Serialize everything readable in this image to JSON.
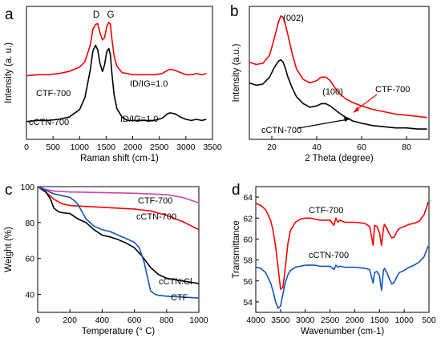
{
  "panels": [
    {
      "panel_label": "a",
      "chart_data": {
        "type": "line",
        "xlabel": "Raman shift (cm-1)",
        "ylabel": "Intensity (a. u.)",
        "xlim": [
          0,
          3500
        ],
        "xticks": [
          "0",
          "500",
          "1000",
          "1500",
          "2000",
          "2500",
          "3000",
          "3500"
        ],
        "yticks_shown": false,
        "peak_labels": [
          "D",
          "G"
        ],
        "annotations": [
          "CTF-700",
          "cCTN-700",
          "ID/IG=1.0",
          "ID/IG=1.0"
        ],
        "series": [
          {
            "name": "CTF-700",
            "color": "#ff0000",
            "x": [
              0,
              200,
              400,
              600,
              800,
              1000,
              1100,
              1200,
              1250,
              1300,
              1340,
              1380,
              1430,
              1470,
              1510,
              1550,
              1580,
              1610,
              1650,
              1700,
              1800,
              1900,
              2000,
              2200,
              2400,
              2550,
              2650,
              2700,
              2800,
              2900,
              3000,
              3100,
              3200,
              3300,
              3380
            ],
            "y": [
              0.51,
              0.52,
              0.52,
              0.53,
              0.55,
              0.59,
              0.64,
              0.79,
              0.94,
              0.98,
              0.99,
              0.91,
              0.84,
              0.86,
              0.96,
              1.0,
              0.98,
              0.84,
              0.69,
              0.6,
              0.54,
              0.53,
              0.52,
              0.52,
              0.52,
              0.53,
              0.56,
              0.57,
              0.56,
              0.54,
              0.52,
              0.52,
              0.53,
              0.52,
              0.53
            ]
          },
          {
            "name": "cCTN-700",
            "color": "#000000",
            "x": [
              0,
              200,
              400,
              600,
              800,
              1000,
              1100,
              1200,
              1250,
              1300,
              1340,
              1380,
              1430,
              1470,
              1510,
              1550,
              1580,
              1610,
              1650,
              1700,
              1800,
              1900,
              2000,
              2200,
              2400,
              2550,
              2650,
              2700,
              2800,
              2900,
              3000,
              3100,
              3200,
              3300,
              3380
            ],
            "y": [
              0.09,
              0.1,
              0.1,
              0.11,
              0.13,
              0.2,
              0.31,
              0.56,
              0.74,
              0.79,
              0.75,
              0.63,
              0.55,
              0.61,
              0.73,
              0.76,
              0.7,
              0.52,
              0.33,
              0.21,
              0.13,
              0.1,
              0.1,
              0.1,
              0.1,
              0.12,
              0.16,
              0.17,
              0.16,
              0.13,
              0.11,
              0.1,
              0.11,
              0.1,
              0.11
            ]
          }
        ]
      }
    },
    {
      "panel_label": "b",
      "chart_data": {
        "type": "line",
        "xlabel": "2 Theta (degree)",
        "ylabel": "Intensity (a.u.)",
        "xlim": [
          10,
          90
        ],
        "xticks": [
          "20",
          "40",
          "60",
          "80"
        ],
        "yticks_shown": false,
        "peak_labels": [
          "(002)",
          "(100)"
        ],
        "annotations": [
          "CTF-700",
          "cCTN-700"
        ],
        "series": [
          {
            "name": "CTF-700",
            "color": "#ff0000",
            "x": [
              10,
              13,
              16,
              19,
              21,
              23,
              24,
              25,
              26,
              27,
              29,
              31,
              34,
              37,
              40,
              42,
              44,
              46,
              48,
              50,
              53,
              56,
              60,
              65,
              70,
              75,
              80,
              85,
              89
            ],
            "y": [
              0.6,
              0.58,
              0.59,
              0.66,
              0.8,
              0.95,
              1.0,
              0.99,
              0.93,
              0.85,
              0.68,
              0.54,
              0.45,
              0.42,
              0.44,
              0.47,
              0.47,
              0.44,
              0.38,
              0.33,
              0.28,
              0.25,
              0.22,
              0.19,
              0.17,
              0.15,
              0.14,
              0.13,
              0.12
            ]
          },
          {
            "name": "cCTN-700",
            "color": "#000000",
            "x": [
              10,
              13,
              16,
              19,
              21,
              23,
              24,
              25,
              26,
              27,
              29,
              31,
              34,
              37,
              40,
              42,
              44,
              46,
              48,
              50,
              53,
              56,
              60,
              65,
              70,
              75,
              80,
              85,
              89
            ],
            "y": [
              0.42,
              0.4,
              0.41,
              0.47,
              0.55,
              0.61,
              0.62,
              0.6,
              0.55,
              0.48,
              0.38,
              0.3,
              0.24,
              0.21,
              0.22,
              0.24,
              0.24,
              0.22,
              0.19,
              0.16,
              0.12,
              0.09,
              0.07,
              0.05,
              0.04,
              0.03,
              0.03,
              0.02,
              0.02
            ]
          }
        ]
      }
    },
    {
      "panel_label": "c",
      "chart_data": {
        "type": "line",
        "xlabel": "Temperature (° C)",
        "ylabel": "Weight (%)",
        "xlim": [
          0,
          1000
        ],
        "ylim": [
          30,
          100
        ],
        "xticks": [
          "0",
          "200",
          "400",
          "600",
          "800",
          "1000"
        ],
        "yticks": [
          "40",
          "60",
          "80",
          "100"
        ],
        "series": [
          {
            "name": "CTF-700",
            "color": "#cc44aa",
            "x": [
              0,
              50,
              100,
              200,
              400,
              600,
              800,
              900,
              1000
            ],
            "y": [
              100,
              98.5,
              97.5,
              97,
              96.7,
              96.3,
              95.5,
              94,
              91
            ]
          },
          {
            "name": "cCTN-700",
            "color": "#ff0000",
            "x": [
              0,
              50,
              100,
              150,
              200,
              300,
              400,
              500,
              600,
              700,
              800,
              900,
              1000
            ],
            "y": [
              100,
              97,
              93,
              90.5,
              89.5,
              89,
              88.5,
              88,
              87.5,
              86.5,
              84,
              80.5,
              76
            ]
          },
          {
            "name": "cCTN:Cl",
            "color": "#000000",
            "x": [
              0,
              50,
              80,
              100,
              130,
              150,
              200,
              250,
              300,
              350,
              400,
              450,
              500,
              550,
              600,
              650,
              700,
              750,
              800,
              900,
              1000
            ],
            "y": [
              100,
              97,
              93,
              88,
              86,
              85.5,
              85,
              82,
              80,
              76,
              73,
              72,
              70.5,
              68.5,
              66,
              61,
              55,
              51,
              49,
              47.5,
              46
            ]
          },
          {
            "name": "CTF",
            "color": "#1155bb",
            "x": [
              0,
              50,
              100,
              150,
              200,
              230,
              250,
              300,
              350,
              400,
              450,
              500,
              550,
              600,
              630,
              660,
              680,
              700,
              730,
              750,
              800,
              900,
              1000
            ],
            "y": [
              100,
              98,
              96,
              95,
              94,
              92,
              90,
              82,
              78,
              76,
              75,
              73,
              71,
              69,
              66,
              58,
              50,
              42,
              40,
              39.5,
              39,
              38.5,
              38
            ]
          }
        ]
      }
    },
    {
      "panel_label": "d",
      "chart_data": {
        "type": "line",
        "xlabel": "Wavenumber (cm-1)",
        "ylabel": "Transmittance",
        "xlim": [
          4000,
          500
        ],
        "ylim": [
          53,
          65
        ],
        "xticks": [
          "4000",
          "3500",
          "3000",
          "2500",
          "2000",
          "1500",
          "1000",
          "500"
        ],
        "yticks": [
          "54",
          "56",
          "58",
          "60",
          "62",
          "64"
        ],
        "series": [
          {
            "name": "CTF-700",
            "color": "#ff0000",
            "x": [
              4000,
              3900,
              3800,
              3700,
              3650,
              3600,
              3550,
              3500,
              3450,
              3400,
              3350,
              3300,
              3200,
              3100,
              3000,
              2900,
              2800,
              2700,
              2600,
              2500,
              2420,
              2380,
              2340,
              2300,
              2200,
              2000,
              1800,
              1700,
              1650,
              1630,
              1600,
              1550,
              1500,
              1460,
              1440,
              1420,
              1400,
              1350,
              1300,
              1250,
              1200,
              1150,
              1100,
              1000,
              900,
              800,
              700,
              600,
              550,
              520
            ],
            "y": [
              63.4,
              63.2,
              62.8,
              61.8,
              60.8,
              59.3,
              57.3,
              55.2,
              55.4,
              57.4,
              59.6,
              60.8,
              61.6,
              61.9,
              62.0,
              62.0,
              61.9,
              61.8,
              61.8,
              61.8,
              61.3,
              62.0,
              61.6,
              61.8,
              61.6,
              61.6,
              61.5,
              61.2,
              60.0,
              59.4,
              61.3,
              61.2,
              60.6,
              59.4,
              60.2,
              61.0,
              61.4,
              61.0,
              60.5,
              60.1,
              60.2,
              60.7,
              61.0,
              61.2,
              61.4,
              61.5,
              61.7,
              62.3,
              63.0,
              63.5
            ]
          },
          {
            "name": "cCTN-700",
            "color": "#1155bb",
            "x": [
              4000,
              3900,
              3800,
              3700,
              3650,
              3600,
              3550,
              3500,
              3450,
              3400,
              3350,
              3300,
              3200,
              3100,
              3000,
              2900,
              2800,
              2700,
              2600,
              2500,
              2420,
              2380,
              2340,
              2300,
              2200,
              2000,
              1800,
              1700,
              1650,
              1630,
              1600,
              1550,
              1500,
              1460,
              1440,
              1420,
              1400,
              1350,
              1300,
              1250,
              1200,
              1150,
              1100,
              1000,
              900,
              800,
              700,
              600,
              550,
              520
            ],
            "y": [
              57.3,
              57.2,
              56.8,
              55.8,
              55.0,
              54.0,
              53.4,
              53.6,
              54.8,
              55.9,
              56.6,
              57.0,
              57.3,
              57.4,
              57.5,
              57.5,
              57.5,
              57.4,
              57.4,
              57.4,
              57.1,
              57.5,
              57.3,
              57.4,
              57.3,
              57.3,
              57.2,
              57.1,
              56.2,
              55.8,
              56.8,
              56.9,
              56.5,
              55.1,
              56.0,
              57.0,
              57.2,
              56.8,
              56.2,
              55.7,
              55.9,
              56.4,
              56.8,
              57.0,
              57.3,
              57.5,
              57.8,
              58.3,
              58.9,
              59.3
            ]
          }
        ]
      }
    }
  ]
}
